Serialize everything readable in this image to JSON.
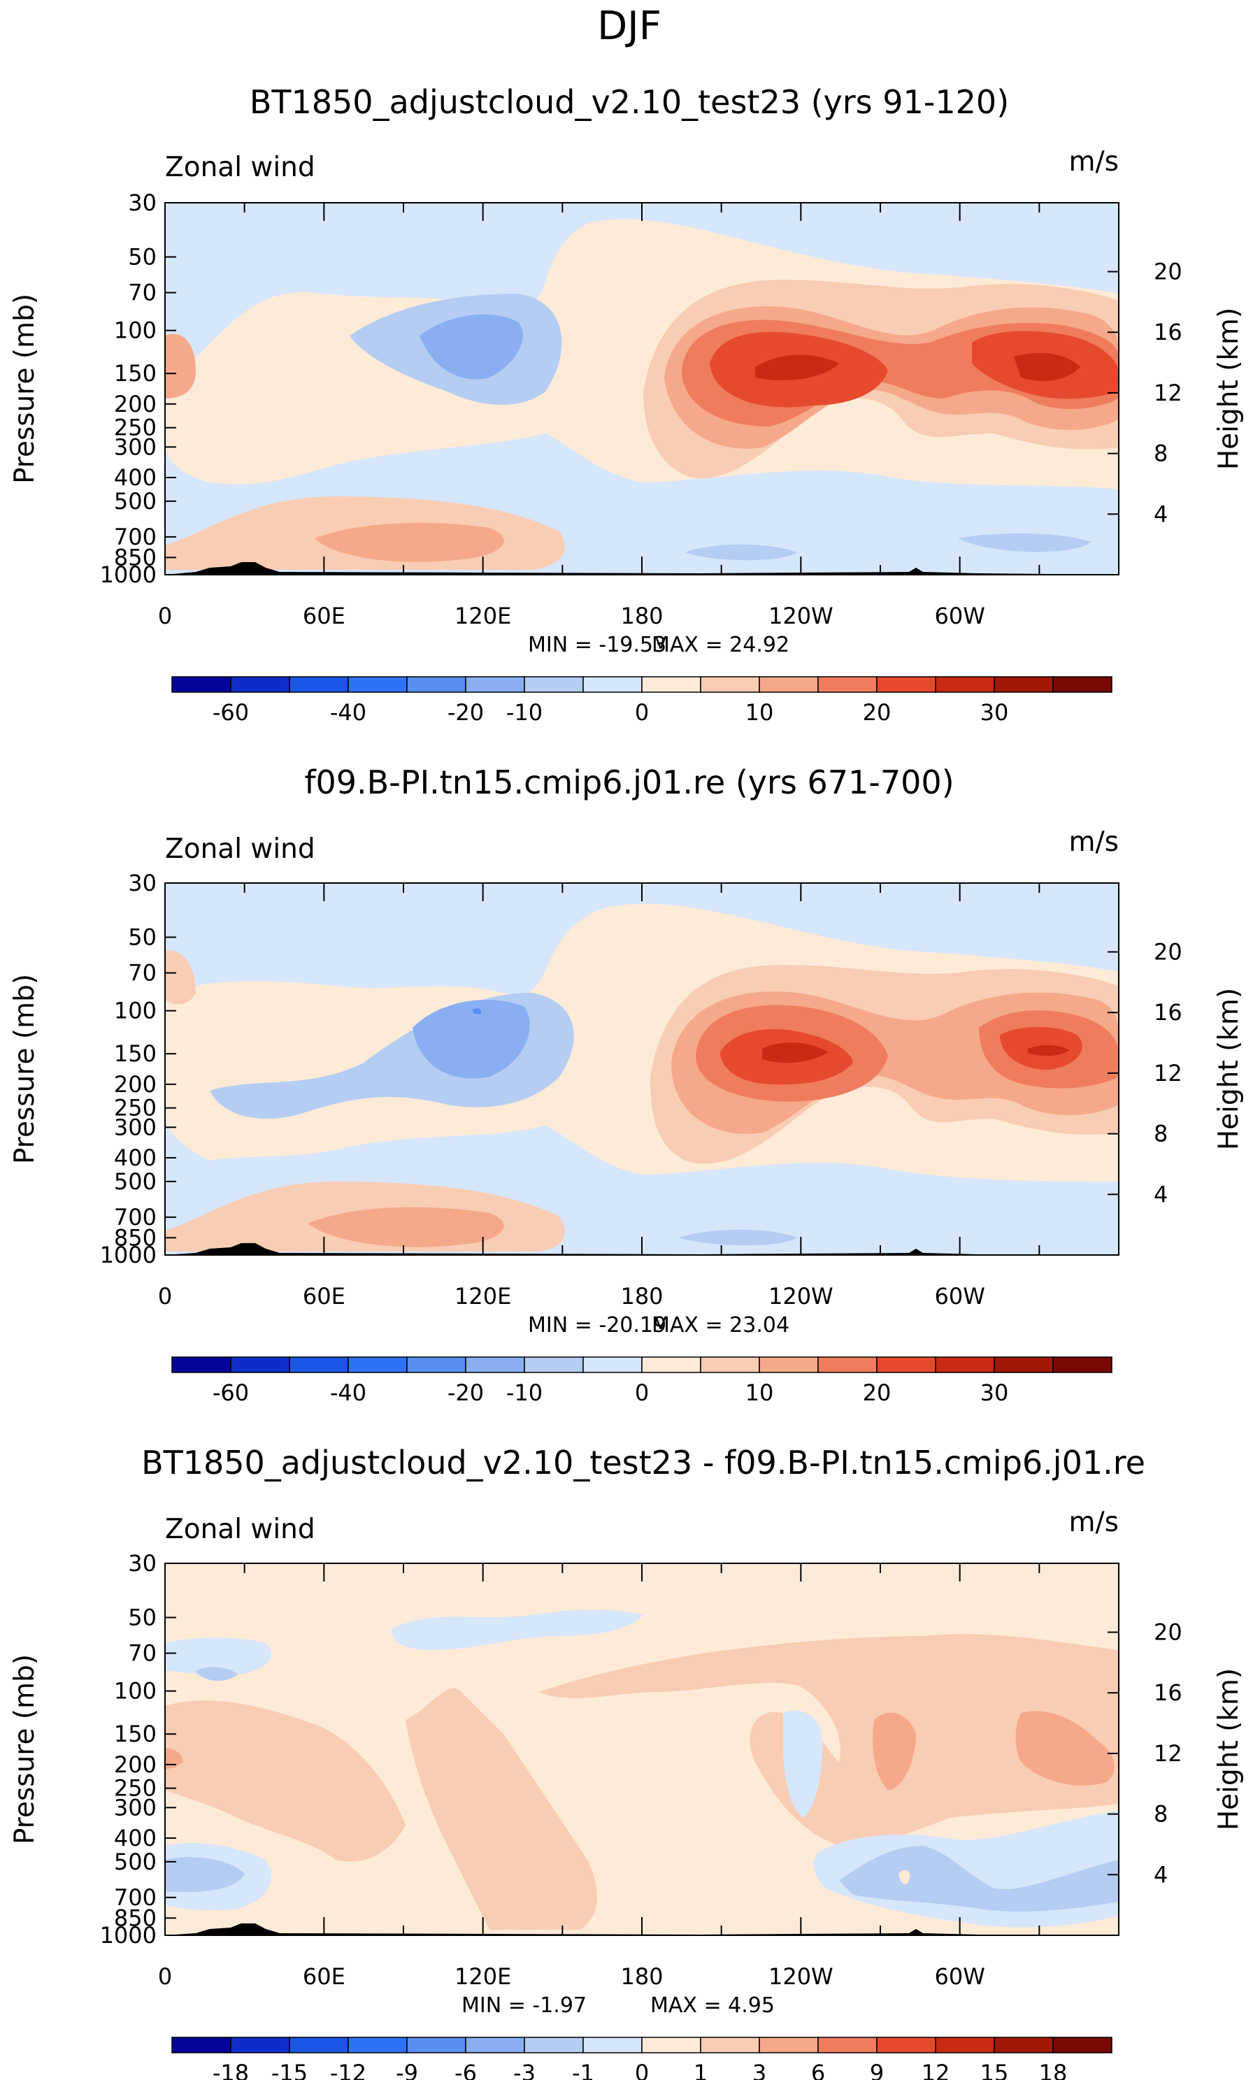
{
  "figure_title": "DJF",
  "chart_data": [
    {
      "type": "heatmap",
      "title": "BT1850_adjustcloud_v2.10_test23 (yrs 91-120)",
      "left_label": "Zonal wind",
      "units": "m/s",
      "ylabel": "Pressure (mb)",
      "y2label": "Height (km)",
      "yticks": [
        "30",
        "50",
        "70",
        "100",
        "150",
        "200",
        "250",
        "300",
        "400",
        "500",
        "700",
        "850",
        "1000"
      ],
      "y2ticks": [
        "20",
        "16",
        "12",
        "8",
        "4"
      ],
      "xticks": [
        "0",
        "60E",
        "120E",
        "180",
        "120W",
        "60W"
      ],
      "min_label": "MIN = -19.53",
      "max_label": "MAX = 24.92",
      "min": -19.53,
      "max": 24.92,
      "colorbar_labels": [
        "-60",
        "-40",
        "-20",
        "-10",
        "0",
        "10",
        "20",
        "30"
      ],
      "colorbar_colors": [
        "#04049a",
        "#0d2cc8",
        "#1a56e6",
        "#2f72f6",
        "#5a8ff2",
        "#89aff2",
        "#b5cdf3",
        "#d6e6fb",
        "#fdebd8",
        "#f9cdb3",
        "#f5a98a",
        "#ef7d5d",
        "#e64a2e",
        "#c92a12",
        "#a01708",
        "#780a05"
      ],
      "fields": [
        {
          "name": "background",
          "color": "#d6e6fb"
        },
        {
          "name": "subtropical-jet-west-pacific",
          "color": "#e64a2e"
        },
        {
          "name": "jet-east-pacific",
          "color": "#e64a2e"
        },
        {
          "name": "easterly-core-west-pacific",
          "color": "#5a8ff2"
        }
      ]
    },
    {
      "type": "heatmap",
      "title": "f09.B-PI.tn15.cmip6.j01.re (yrs 671-700)",
      "left_label": "Zonal wind",
      "units": "m/s",
      "ylabel": "Pressure (mb)",
      "y2label": "Height (km)",
      "yticks": [
        "30",
        "50",
        "70",
        "100",
        "150",
        "200",
        "250",
        "300",
        "400",
        "500",
        "700",
        "850",
        "1000"
      ],
      "y2ticks": [
        "20",
        "16",
        "12",
        "8",
        "4"
      ],
      "xticks": [
        "0",
        "60E",
        "120E",
        "180",
        "120W",
        "60W"
      ],
      "min_label": "MIN = -20.19",
      "max_label": "MAX = 23.04",
      "min": -20.19,
      "max": 23.04,
      "colorbar_labels": [
        "-60",
        "-40",
        "-20",
        "-10",
        "0",
        "10",
        "20",
        "30"
      ],
      "colorbar_colors": [
        "#04049a",
        "#0d2cc8",
        "#1a56e6",
        "#2f72f6",
        "#5a8ff2",
        "#89aff2",
        "#b5cdf3",
        "#d6e6fb",
        "#fdebd8",
        "#f9cdb3",
        "#f5a98a",
        "#ef7d5d",
        "#e64a2e",
        "#c92a12",
        "#a01708",
        "#780a05"
      ]
    },
    {
      "type": "heatmap",
      "title": "BT1850_adjustcloud_v2.10_test23 - f09.B-PI.tn15.cmip6.j01.re",
      "left_label": "Zonal wind",
      "units": "m/s",
      "ylabel": "Pressure (mb)",
      "y2label": "Height (km)",
      "yticks": [
        "30",
        "50",
        "70",
        "100",
        "150",
        "200",
        "250",
        "300",
        "400",
        "500",
        "700",
        "850",
        "1000"
      ],
      "y2ticks": [
        "20",
        "16",
        "12",
        "8",
        "4"
      ],
      "xticks": [
        "0",
        "60E",
        "120E",
        "180",
        "120W",
        "60W"
      ],
      "min_label": "MIN = -1.97",
      "max_label": "MAX = 4.95",
      "min": -1.97,
      "max": 4.95,
      "colorbar_labels": [
        "-18",
        "-15",
        "-12",
        "-9",
        "-6",
        "-3",
        "-1",
        "0",
        "1",
        "3",
        "6",
        "9",
        "12",
        "15",
        "18"
      ],
      "colorbar_colors": [
        "#04049a",
        "#0d2cc8",
        "#1a56e6",
        "#2f72f6",
        "#5a8ff2",
        "#89aff2",
        "#b5cdf3",
        "#d6e6fb",
        "#fdebd8",
        "#f9cdb3",
        "#f5a98a",
        "#ef7d5d",
        "#e64a2e",
        "#c92a12",
        "#a01708",
        "#780a05"
      ]
    }
  ]
}
